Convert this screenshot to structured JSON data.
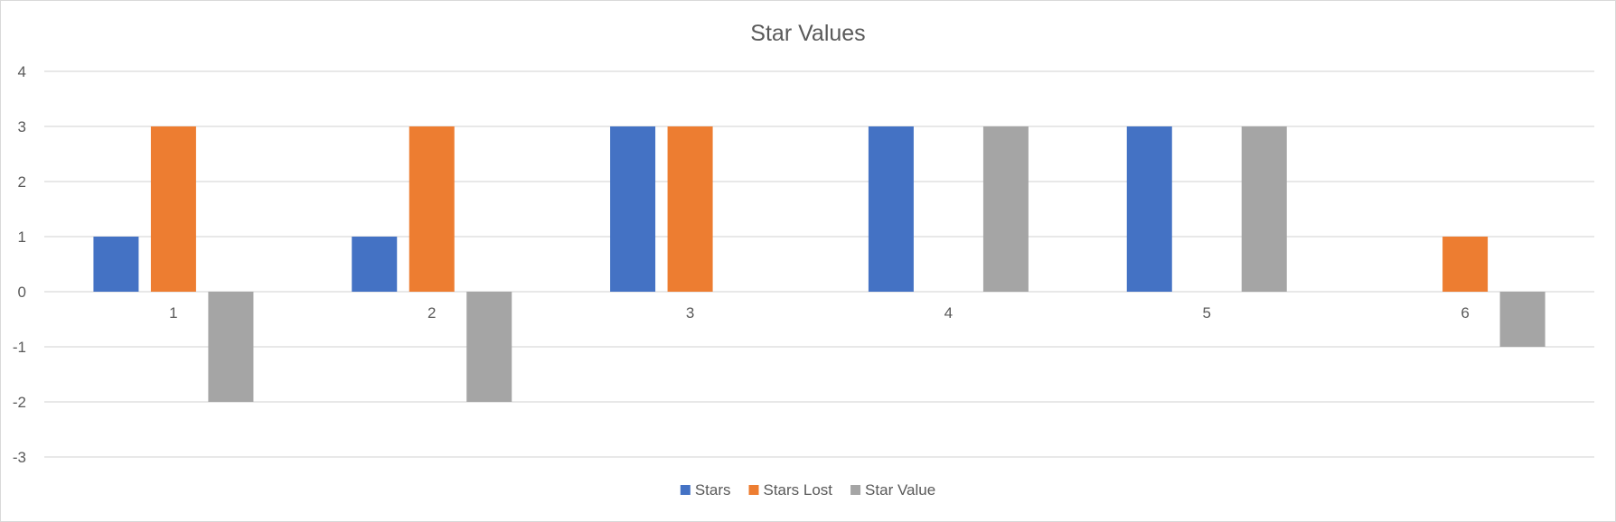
{
  "chart_data": {
    "type": "bar",
    "title": "Star Values",
    "xlabel": "",
    "ylabel": "",
    "categories": [
      "1",
      "2",
      "3",
      "4",
      "5",
      "6"
    ],
    "series": [
      {
        "name": "Stars",
        "color": "#4472c4",
        "values": [
          1,
          1,
          3,
          3,
          3,
          0
        ]
      },
      {
        "name": "Stars Lost",
        "color": "#ed7d31",
        "values": [
          3,
          3,
          3,
          0,
          0,
          1
        ]
      },
      {
        "name": "Star Value",
        "color": "#a5a5a5",
        "values": [
          -2,
          -2,
          0,
          3,
          3,
          -1
        ]
      }
    ],
    "ylim": [
      -3,
      4
    ],
    "yticks": [
      4,
      3,
      2,
      1,
      0,
      -1,
      -2,
      -3
    ],
    "grid": true,
    "legend_position": "bottom"
  }
}
